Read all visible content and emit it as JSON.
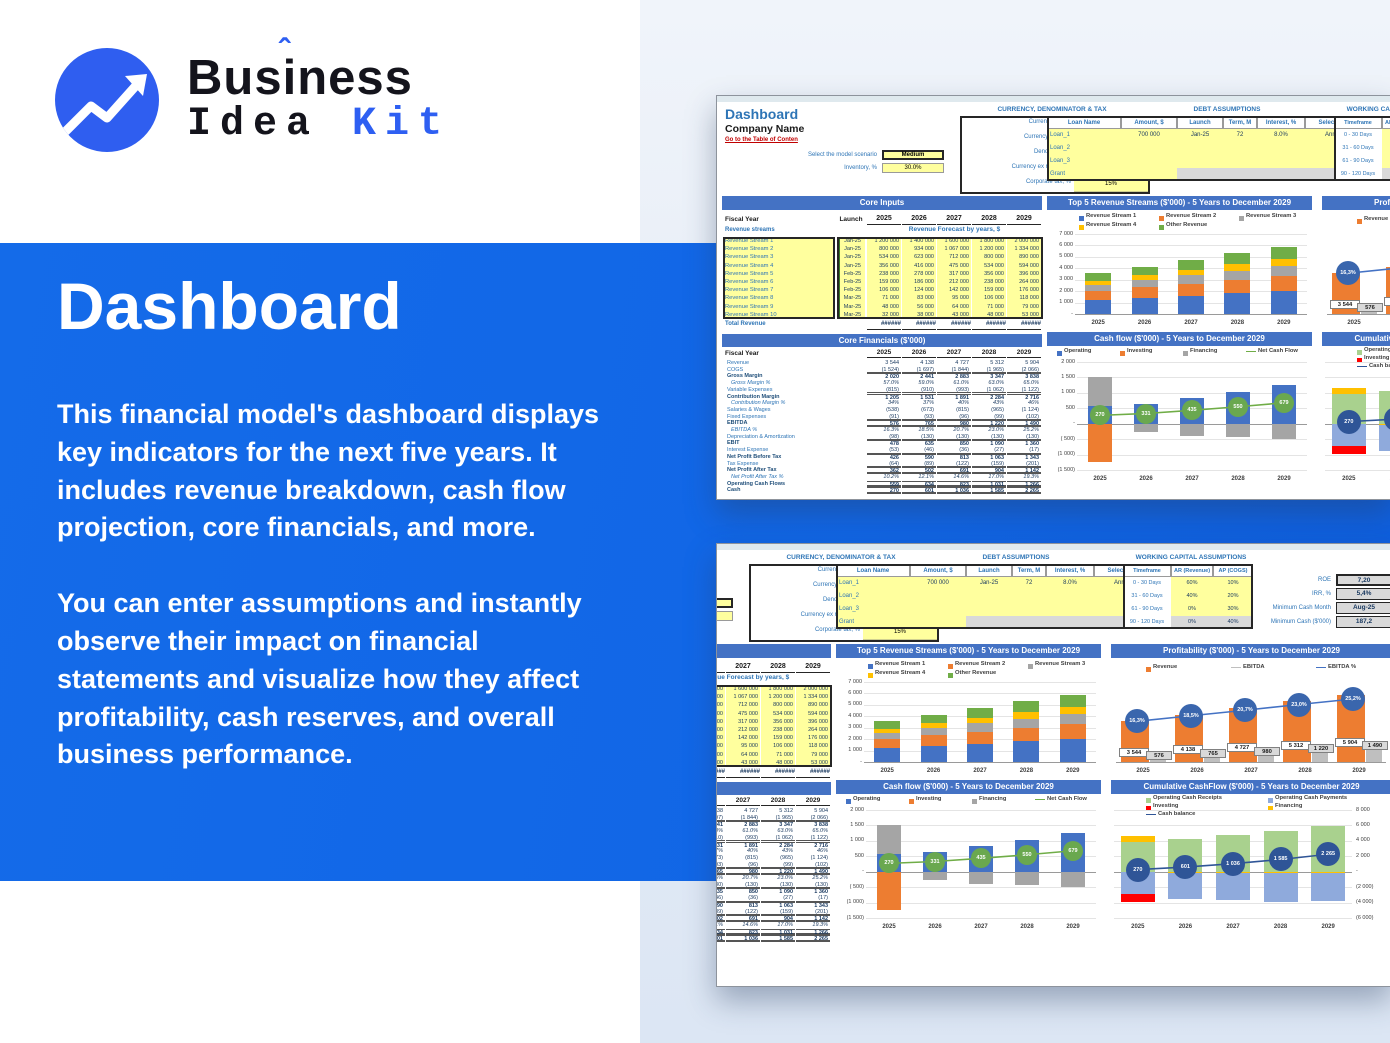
{
  "logo": {
    "word1_a": "Bus",
    "word1_i": "i",
    "word1_b": "ness",
    "hat": "ˆ",
    "word2": "Idea ",
    "word2_accent": "Kit"
  },
  "panel": {
    "title": "Dashboard",
    "para1": "This financial model's dashboard displays key indicators for the next five years. It includes revenue breakdown, cash flow projection, core financials, and more.",
    "para2": "You can enter assumptions and instantly observe their impact on financial statements and visualize how they affect profitability, cash reserves, and overall business performance."
  },
  "colors": {
    "panel_blue": "#1166E6",
    "excel_band": "#4472C4",
    "section_blue": "#2E75B6",
    "link_red": "#C00000",
    "input_yellow": "#FFFF9E",
    "series_blue": "#4472C4",
    "series_orange": "#ED7D31",
    "series_gray": "#A5A5A5",
    "series_yellow": "#FFC000",
    "series_green": "#70AD47",
    "series_red": "#FF0000",
    "series_lightgreen": "#A9D18E",
    "series_lightblue": "#8FAADC",
    "series_navy": "#2F5597"
  },
  "dashboard": {
    "title": "Dashboard",
    "company": "Company Name",
    "toc_link": "Go to the Table of Conten",
    "scenario_label": "Select the model scenario",
    "scenario_value": "Medium",
    "inventory_label": "Inventory, %",
    "inventory_value": "30.0%",
    "currency": {
      "title": "CURRENCY, DENOMINATOR & TAX",
      "rows": [
        [
          "Currency Inputs",
          "$"
        ],
        [
          "Currency Outputs",
          "$"
        ],
        [
          "Denomination",
          "1 000"
        ],
        [
          "Currency ex rate, $ / $",
          "1.000"
        ],
        [
          "Corporate tax, %",
          "15%"
        ]
      ]
    },
    "debt": {
      "title": "DEBT ASSUMPTIONS",
      "headers": [
        "Loan Name",
        "Amount, $",
        "Launch",
        "Term, M",
        "Interest, %",
        "Select Type"
      ],
      "rows": [
        [
          "Loan_1",
          "700 000",
          "Jan-25",
          "72",
          "8.0%",
          "Annuity"
        ],
        [
          "Loan_2",
          "",
          "",
          "",
          "",
          ""
        ],
        [
          "Loan_3",
          "",
          "",
          "",
          "",
          ""
        ],
        [
          "Grant",
          "",
          "",
          "",
          "",
          ""
        ]
      ]
    },
    "working": {
      "title": "WORKING CAPITAL ASSUMPTIONS",
      "headers": [
        "Timeframe",
        "AR (Revenue)",
        "AP (COGS)"
      ],
      "rows": [
        [
          "0 - 30 Days",
          "60%",
          "10%"
        ],
        [
          "31 - 60 Days",
          "40%",
          "20%"
        ],
        [
          "61 - 90 Days",
          "0%",
          "30%"
        ],
        [
          "90 - 120 Days",
          "0%",
          "40%"
        ]
      ]
    },
    "kpi": {
      "rows": [
        [
          "ROE",
          "7,20"
        ],
        [
          "IRR, %",
          "5,4%"
        ],
        [
          "Minimum Cash Month",
          "Aug-25"
        ],
        [
          "Minimum Cash ($'000)",
          "187,2"
        ]
      ]
    },
    "core_inputs": {
      "header": "Core Inputs",
      "fiscal_label": "Fiscal Year",
      "launch_label": "Launch",
      "years": [
        "2025",
        "2026",
        "2027",
        "2028",
        "2029"
      ],
      "streams_label": "Revenue streams",
      "forecast_label": "Revenue Forecast by years, $",
      "streams": [
        {
          "name": "Revenue Stream 1",
          "month": "Jan-25",
          "values": [
            "1 200 000",
            "1 400 000",
            "1 600 000",
            "1 800 000",
            "2 000 000"
          ]
        },
        {
          "name": "Revenue Stream 2",
          "month": "Jan-25",
          "values": [
            "800 000",
            "934 000",
            "1 067 000",
            "1 200 000",
            "1 334 000"
          ]
        },
        {
          "name": "Revenue Stream 3",
          "month": "Jan-25",
          "values": [
            "534 000",
            "623 000",
            "712 000",
            "800 000",
            "890 000"
          ]
        },
        {
          "name": "Revenue Stream 4",
          "month": "Jan-25",
          "values": [
            "356 000",
            "416 000",
            "475 000",
            "534 000",
            "594 000"
          ]
        },
        {
          "name": "Revenue Stream 5",
          "month": "Feb-25",
          "values": [
            "238 000",
            "278 000",
            "317 000",
            "356 000",
            "396 000"
          ]
        },
        {
          "name": "Revenue Stream 6",
          "month": "Feb-25",
          "values": [
            "159 000",
            "186 000",
            "212 000",
            "238 000",
            "264 000"
          ]
        },
        {
          "name": "Revenue Stream 7",
          "month": "Feb-25",
          "values": [
            "106 000",
            "124 000",
            "142 000",
            "159 000",
            "176 000"
          ]
        },
        {
          "name": "Revenue Stream 8",
          "month": "Mar-25",
          "values": [
            "71 000",
            "83 000",
            "95 000",
            "106 000",
            "118 000"
          ]
        },
        {
          "name": "Revenue Stream 9",
          "month": "Mar-25",
          "values": [
            "48 000",
            "56 000",
            "64 000",
            "71 000",
            "79 000"
          ]
        },
        {
          "name": "Revenue Stream 10",
          "month": "Mar-25",
          "values": [
            "32 000",
            "38 000",
            "43 000",
            "48 000",
            "53 000"
          ]
        }
      ],
      "total_label": "Total Revenue",
      "total_values": [
        "######",
        "######",
        "######",
        "######",
        "######"
      ]
    },
    "core_financials": {
      "header": "Core Financials ($'000)",
      "fiscal_label": "Fiscal Year",
      "years": [
        "2025",
        "2026",
        "2027",
        "2028",
        "2029"
      ],
      "rows": [
        {
          "label": "Revenue",
          "values": [
            "3 544",
            "4 138",
            "4 727",
            "5 312",
            "5 904"
          ],
          "style": "plain"
        },
        {
          "label": "COGS",
          "values": [
            "(1 524)",
            "(1 697)",
            "(1 844)",
            "(1 965)",
            "(2 066)"
          ],
          "style": "plainu"
        },
        {
          "label": "Gross Margin",
          "values": [
            "2 020",
            "2 441",
            "2 883",
            "3 347",
            "3 838"
          ],
          "style": "bold"
        },
        {
          "label": "Gross Margin %",
          "values": [
            "57.0%",
            "59.0%",
            "61.0%",
            "63.0%",
            "65.0%"
          ],
          "style": "pct"
        },
        {
          "label": "Variable Expenses",
          "values": [
            "(815)",
            "(910)",
            "(993)",
            "(1 062)",
            "(1 122)"
          ],
          "style": "plainu"
        },
        {
          "label": "Contribution Margin",
          "values": [
            "1 205",
            "1 531",
            "1 891",
            "2 284",
            "2 716"
          ],
          "style": "bold"
        },
        {
          "label": "Contribution Margin %",
          "values": [
            "34%",
            "37%",
            "40%",
            "43%",
            "46%"
          ],
          "style": "pct"
        },
        {
          "label": "Salaries & Wages",
          "values": [
            "(538)",
            "(673)",
            "(815)",
            "(965)",
            "(1 124)"
          ],
          "style": "plain"
        },
        {
          "label": "Fixed Expenses",
          "values": [
            "(91)",
            "(93)",
            "(96)",
            "(99)",
            "(102)"
          ],
          "style": "plainu"
        },
        {
          "label": "EBITDA",
          "values": [
            "576",
            "765",
            "980",
            "1 220",
            "1 490"
          ],
          "style": "boldd"
        },
        {
          "label": "EBITDA %",
          "values": [
            "16.3%",
            "18.5%",
            "20.7%",
            "23.0%",
            "25.2%"
          ],
          "style": "pct"
        },
        {
          "label": "Depreciation & Amortization",
          "values": [
            "(98)",
            "(130)",
            "(130)",
            "(130)",
            "(130)"
          ],
          "style": "plainu"
        },
        {
          "label": "EBIT",
          "values": [
            "478",
            "635",
            "850",
            "1 090",
            "1 360"
          ],
          "style": "bold"
        },
        {
          "label": "Interest Expense",
          "values": [
            "(53)",
            "(46)",
            "(36)",
            "(27)",
            "(17)"
          ],
          "style": "plainu"
        },
        {
          "label": "Net Profit Before Tax",
          "values": [
            "426",
            "590",
            "813",
            "1 063",
            "1 343"
          ],
          "style": "bold"
        },
        {
          "label": "Tax Expense",
          "values": [
            "(64)",
            "(89)",
            "(122)",
            "(159)",
            "(201)"
          ],
          "style": "plainu"
        },
        {
          "label": "Net Profit After Tax",
          "values": [
            "362",
            "502",
            "691",
            "904",
            "1 142"
          ],
          "style": "boldd"
        },
        {
          "label": "Net Profit After Tax %",
          "values": [
            "10.2%",
            "12.1%",
            "14.6%",
            "17.0%",
            "19.3%"
          ],
          "style": "pct"
        },
        {
          "label": "Operating Cash Flows",
          "values": [
            "559",
            "634",
            "823",
            "1 031",
            "1 266"
          ],
          "style": "boldd"
        },
        {
          "label": "Cash",
          "values": [
            "270",
            "601",
            "1 036",
            "1 585",
            "2 265"
          ],
          "style": "boldd"
        }
      ]
    }
  },
  "chart_data": [
    {
      "id": "top5",
      "type": "bar",
      "subtype": "stacked",
      "title": "Top 5 Revenue Streams ($'000) - 5 Years to December 2029",
      "categories": [
        "2025",
        "2026",
        "2027",
        "2028",
        "2029"
      ],
      "series": [
        {
          "name": "Revenue Stream 1",
          "color": "#4472C4",
          "values": [
            1200,
            1400,
            1600,
            1800,
            2000
          ]
        },
        {
          "name": "Revenue Stream 2",
          "color": "#ED7D31",
          "values": [
            800,
            934,
            1067,
            1200,
            1334
          ]
        },
        {
          "name": "Revenue Stream 3",
          "color": "#A5A5A5",
          "values": [
            534,
            623,
            712,
            800,
            890
          ]
        },
        {
          "name": "Revenue Stream 4",
          "color": "#FFC000",
          "values": [
            356,
            416,
            475,
            534,
            594
          ]
        },
        {
          "name": "Other Revenue",
          "color": "#70AD47",
          "values": [
            654,
            765,
            873,
            978,
            1086
          ]
        }
      ],
      "ylim": [
        0,
        7000
      ],
      "yticks": [
        [
          "7 000",
          7000
        ],
        [
          "6 000",
          6000
        ],
        [
          "5 000",
          5000
        ],
        [
          "4 000",
          4000
        ],
        [
          "3 000",
          3000
        ],
        [
          "2 000",
          2000
        ],
        [
          "1 000",
          1000
        ],
        [
          "-",
          0
        ]
      ],
      "legend_position": "top"
    },
    {
      "id": "profitability",
      "type": "bar",
      "subtype": "bar-line",
      "title": "Profitability ($'000) - 5 Years to December 2029",
      "categories": [
        "2025",
        "2026",
        "2027",
        "2028",
        "2029"
      ],
      "series": [
        {
          "name": "Revenue",
          "color": "#ED7D31",
          "values": [
            3544,
            4138,
            4727,
            5312,
            5904
          ],
          "labels": [
            "3 544",
            "4 138",
            "4 727",
            "5 312",
            "5 904"
          ]
        },
        {
          "name": "EBITDA",
          "color": "#BFBFBF",
          "values": [
            576,
            765,
            980,
            1220,
            1490
          ],
          "labels": [
            "576",
            "765",
            "980",
            "1 220",
            "1 490"
          ]
        }
      ],
      "line": {
        "name": "EBITDA %",
        "color": "#4472C4",
        "values": [
          16.3,
          18.5,
          20.7,
          23.0,
          25.2
        ],
        "labels": [
          "16,3%",
          "18,5%",
          "20,7%",
          "23,0%",
          "25,2%"
        ],
        "ylim": [
          0,
          32
        ]
      },
      "ylim": [
        0,
        7000
      ],
      "legend_position": "top"
    },
    {
      "id": "cashflow",
      "type": "bar",
      "subtype": "stacked-line",
      "title": "Cash flow ($'000) - 5 Years to December 2029",
      "categories": [
        "2025",
        "2026",
        "2027",
        "2028",
        "2029"
      ],
      "series": [
        {
          "name": "Operating",
          "color": "#4472C4",
          "values": [
            559,
            634,
            823,
            1031,
            1266
          ]
        },
        {
          "name": "Investing",
          "color": "#ED7D31",
          "values": [
            -1250,
            0,
            0,
            0,
            0
          ]
        },
        {
          "name": "Financing",
          "color": "#A5A5A5",
          "values": [
            941,
            -280,
            -390,
            -440,
            -490
          ]
        }
      ],
      "line": {
        "name": "Net Cash Flow",
        "color": "#70AD47",
        "values": [
          270,
          331,
          435,
          550,
          679
        ],
        "labels": [
          "270",
          "331",
          "435",
          "550",
          "679"
        ]
      },
      "ylim": [
        -1500,
        2000
      ],
      "yticks": [
        [
          "2 000",
          2000
        ],
        [
          "1 500",
          1500
        ],
        [
          "1 000",
          1000
        ],
        [
          "500",
          500
        ],
        [
          "-",
          0
        ],
        [
          "( 500)",
          -500
        ],
        [
          "(1 000)",
          -1000
        ],
        [
          "(1 500)",
          -1500
        ]
      ],
      "legend_position": "top"
    },
    {
      "id": "cumulative",
      "type": "bar",
      "subtype": "stacked-line",
      "title": "Cumulative CashFlow ($'000) - 5 Years to December 2029",
      "categories": [
        "2025",
        "2026",
        "2027",
        "2028",
        "2029"
      ],
      "series": [
        {
          "name": "Operating Cash Receipts",
          "color": "#A9D18E",
          "values": [
            3800,
            4200,
            4750,
            5300,
            5900
          ]
        },
        {
          "name": "Financing",
          "color": "#FFC000",
          "values": [
            800,
            -120,
            -140,
            -160,
            -180
          ]
        },
        {
          "name": "Operating Cash Payments",
          "color": "#8FAADC",
          "values": [
            -2950,
            -3400,
            -3550,
            -3750,
            -3600
          ]
        },
        {
          "name": "Investing",
          "color": "#FF0000",
          "values": [
            -1000,
            0,
            0,
            0,
            0
          ]
        }
      ],
      "line": {
        "name": "Cash balance",
        "color": "#2F5597",
        "values": [
          270,
          601,
          1036,
          1585,
          2265
        ],
        "labels": [
          "270",
          "601",
          "1 036",
          "1 585",
          "2 265"
        ]
      },
      "ylim": [
        -6000,
        8000
      ],
      "yticks": [
        [
          "8 000",
          8000
        ],
        [
          "6 000",
          6000
        ],
        [
          "4 000",
          4000
        ],
        [
          "2 000",
          2000
        ],
        [
          "-",
          0
        ],
        [
          "(2 000)",
          -2000
        ],
        [
          "(4 000)",
          -4000
        ],
        [
          "(6 000)",
          -6000
        ]
      ],
      "yticks_side": "right",
      "legend_position": "top"
    }
  ]
}
